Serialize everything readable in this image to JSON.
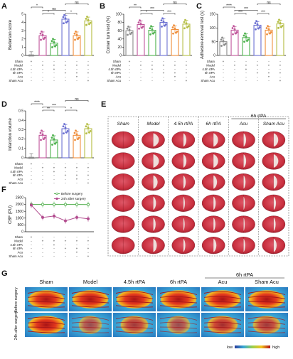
{
  "panel_letters": [
    "A",
    "B",
    "C",
    "D",
    "E",
    "F",
    "G"
  ],
  "colors": {
    "Sham": "#8c8c8c",
    "Model": "#c0559a",
    "4.5h rtPA": "#4fb24f",
    "6h rtPA": "#6a6fd1",
    "Acu": "#ef8e3b",
    "Sham Acu": "#b5be45",
    "before": "#4fae4a",
    "after": "#b24c8f"
  },
  "treatment_table": {
    "row_labels": [
      "Sham",
      "Model",
      "4.5h rtPA",
      "6h rtPA",
      "Acu",
      "Sham Acu"
    ],
    "matrix": [
      [
        "+",
        "-",
        "-",
        "-",
        "-",
        "-"
      ],
      [
        "-",
        "+",
        "+",
        "+",
        "+",
        "+"
      ],
      [
        "-",
        "-",
        "+",
        "-",
        "-",
        "-"
      ],
      [
        "-",
        "-",
        "-",
        "+",
        "+",
        "+"
      ],
      [
        "-",
        "-",
        "-",
        "-",
        "+",
        "-"
      ],
      [
        "-",
        "-",
        "-",
        "-",
        "-",
        "+"
      ]
    ]
  },
  "chart_data": [
    {
      "panel": "A",
      "type": "bar",
      "ylabel": "Bederson score",
      "ylim": [
        0,
        5
      ],
      "yticks": [
        0,
        1,
        2,
        3,
        4,
        5
      ],
      "values": [
        0,
        2.4,
        1.5,
        4.4,
        2.4,
        4.2
      ],
      "sig": [
        "*",
        "*",
        "ns",
        "*",
        "ns"
      ]
    },
    {
      "panel": "B",
      "type": "bar",
      "ylabel": "Corner turn test (%)",
      "ylim": [
        0,
        100
      ],
      "yticks": [
        0,
        20,
        40,
        60,
        80,
        100
      ],
      "values": [
        60,
        75,
        61,
        80,
        63,
        76
      ],
      "sig": [
        "**",
        "*",
        "***",
        "***",
        "ns"
      ]
    },
    {
      "panel": "C",
      "type": "bar",
      "ylabel": "Adhesive-removal test (s)",
      "ylim": [
        0,
        150
      ],
      "yticks": [
        0,
        50,
        100,
        150
      ],
      "values": [
        50,
        92,
        65,
        110,
        92,
        115
      ],
      "sig": [
        "****",
        "***",
        "***",
        "***",
        "ns"
      ]
    },
    {
      "panel": "D",
      "type": "bar",
      "ylabel": "Infarction volume",
      "ylim": [
        0,
        0.5
      ],
      "yticks": [
        0,
        0.1,
        0.2,
        0.3,
        0.4,
        0.5
      ],
      "values": [
        0,
        0.24,
        0.19,
        0.31,
        0.24,
        0.31
      ],
      "sig": [
        "****",
        "**",
        "***",
        "*",
        "ns"
      ]
    },
    {
      "panel": "F",
      "type": "line",
      "ylabel": "CBF (PU)",
      "ylim": [
        0,
        2500
      ],
      "yticks": [
        0,
        500,
        1000,
        1500,
        2000,
        2500
      ],
      "series": [
        {
          "name": "Before surgery",
          "values": [
            2000,
            2000,
            2000,
            2000,
            2000,
            1990
          ]
        },
        {
          "name": "24h after surgery",
          "values": [
            1950,
            1050,
            1150,
            800,
            1050,
            950
          ]
        }
      ]
    }
  ],
  "panel_E": {
    "columns": [
      "Sham",
      "Model",
      "4.5h rtPA",
      "6h rtPA",
      "Acu",
      "Sham Acu"
    ],
    "group_label": "6h rtPA",
    "rows": 6,
    "infarct": [
      0,
      0.55,
      0.3,
      0.45,
      0.25,
      0.45
    ]
  },
  "panel_G": {
    "columns": [
      "Sham",
      "Model",
      "4.5h rtPA",
      "6h rtPA",
      "Acu",
      "Sham Acu"
    ],
    "group_label": "6h rtPA",
    "row_labels": [
      "Before surgery",
      "24h after surgery"
    ],
    "after_flow": [
      1.0,
      0.3,
      0.55,
      0.3,
      0.7,
      0.55
    ],
    "colorbar_low": "low",
    "colorbar_high": "high"
  }
}
